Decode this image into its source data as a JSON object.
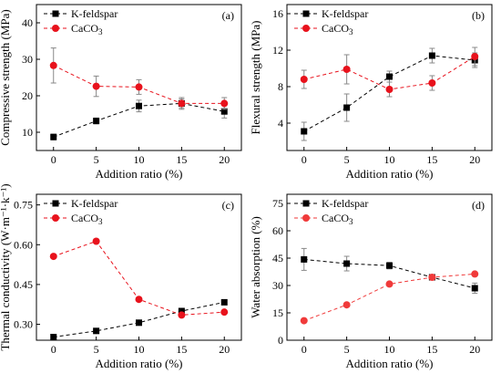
{
  "chart_data": [
    {
      "type": "line",
      "panel": "(a)",
      "xlabel": "Addition ratio (%)",
      "ylabel": "Compressive strength (MPa)",
      "x": [
        0,
        5,
        10,
        15,
        20
      ],
      "xticks": [
        0,
        5,
        10,
        15,
        20
      ],
      "ylim": [
        5,
        45
      ],
      "yticks": [
        10,
        20,
        30,
        40
      ],
      "grid": false,
      "legend_position": "top-left",
      "series": [
        {
          "name": "K-feldspar",
          "color": "#000000",
          "marker": "square",
          "line": "dashed",
          "values": [
            8.7,
            13.1,
            17.2,
            17.9,
            15.7
          ],
          "errors": [
            0.8,
            0.8,
            1.6,
            1.2,
            1.8
          ]
        },
        {
          "name": "CaCO",
          "name_sub": "3",
          "color": "#e8121c",
          "marker": "circle",
          "line": "dashed",
          "values": [
            28.3,
            22.6,
            22.4,
            17.9,
            17.9
          ],
          "errors": [
            4.8,
            2.8,
            2.0,
            1.6,
            1.6
          ]
        }
      ]
    },
    {
      "type": "line",
      "panel": "(b)",
      "xlabel": "Addition ratio (%)",
      "ylabel": "Flexural strength (MPa)",
      "x": [
        0,
        5,
        10,
        15,
        20
      ],
      "xticks": [
        0,
        5,
        10,
        15,
        20
      ],
      "ylim": [
        1,
        17
      ],
      "yticks": [
        4,
        8,
        12,
        16
      ],
      "grid": false,
      "legend_position": "top-left",
      "series": [
        {
          "name": "K-feldspar",
          "color": "#000000",
          "marker": "square",
          "line": "dashed",
          "values": [
            3.1,
            5.7,
            9.1,
            11.4,
            10.9
          ],
          "errors": [
            1.0,
            1.5,
            0.6,
            0.8,
            0.8
          ]
        },
        {
          "name": "CaCO",
          "name_sub": "3",
          "color": "#e8121c",
          "marker": "circle",
          "line": "dashed",
          "values": [
            8.8,
            9.9,
            7.7,
            8.4,
            11.3
          ],
          "errors": [
            1.0,
            1.6,
            0.8,
            0.8,
            1.0
          ]
        }
      ]
    },
    {
      "type": "line",
      "panel": "(c)",
      "xlabel": "Addition ratio (%)",
      "ylabel": "Thermal conductivity (W·m⁻¹·k⁻¹)",
      "x": [
        0,
        5,
        10,
        15,
        20
      ],
      "xticks": [
        0,
        5,
        10,
        15,
        20
      ],
      "ylim": [
        0.24,
        0.79
      ],
      "yticks": [
        0.3,
        0.45,
        0.6,
        0.75
      ],
      "ytick_labels": [
        "0.30",
        "0.45",
        "0.60",
        "0.75"
      ],
      "grid": false,
      "legend_position": "top-left",
      "series": [
        {
          "name": "K-feldspar",
          "color": "#000000",
          "marker": "square",
          "line": "dashed",
          "values": [
            0.252,
            0.275,
            0.306,
            0.35,
            0.383
          ],
          "errors": [
            0,
            0,
            0,
            0,
            0
          ]
        },
        {
          "name": "CaCO",
          "name_sub": "3",
          "color": "#e8121c",
          "marker": "circle",
          "line": "dashed",
          "values": [
            0.556,
            0.613,
            0.394,
            0.335,
            0.346
          ],
          "errors": [
            0,
            0,
            0,
            0,
            0
          ]
        }
      ]
    },
    {
      "type": "line",
      "panel": "(d)",
      "xlabel": "Addition ratio (%)",
      "ylabel": "Water absorption (%)",
      "x": [
        0,
        5,
        10,
        15,
        20
      ],
      "xticks": [
        0,
        5,
        10,
        15,
        20
      ],
      "ylim": [
        0,
        80
      ],
      "yticks": [
        0,
        15,
        30,
        45,
        60,
        75
      ],
      "grid": false,
      "legend_position": "top-left",
      "series": [
        {
          "name": "K-feldspar",
          "color": "#000000",
          "marker": "square",
          "line": "dashed",
          "values": [
            44.3,
            42.0,
            40.9,
            34.5,
            28.5
          ],
          "errors": [
            6.0,
            4.0,
            1.8,
            1.2,
            2.8
          ]
        },
        {
          "name": "CaCO",
          "name_sub": "3",
          "color": "#f03a3a",
          "marker": "circle",
          "line": "dashed",
          "values": [
            10.7,
            19.4,
            30.8,
            34.5,
            36.3
          ],
          "errors": [
            0,
            0,
            0,
            0,
            0
          ]
        }
      ]
    }
  ]
}
